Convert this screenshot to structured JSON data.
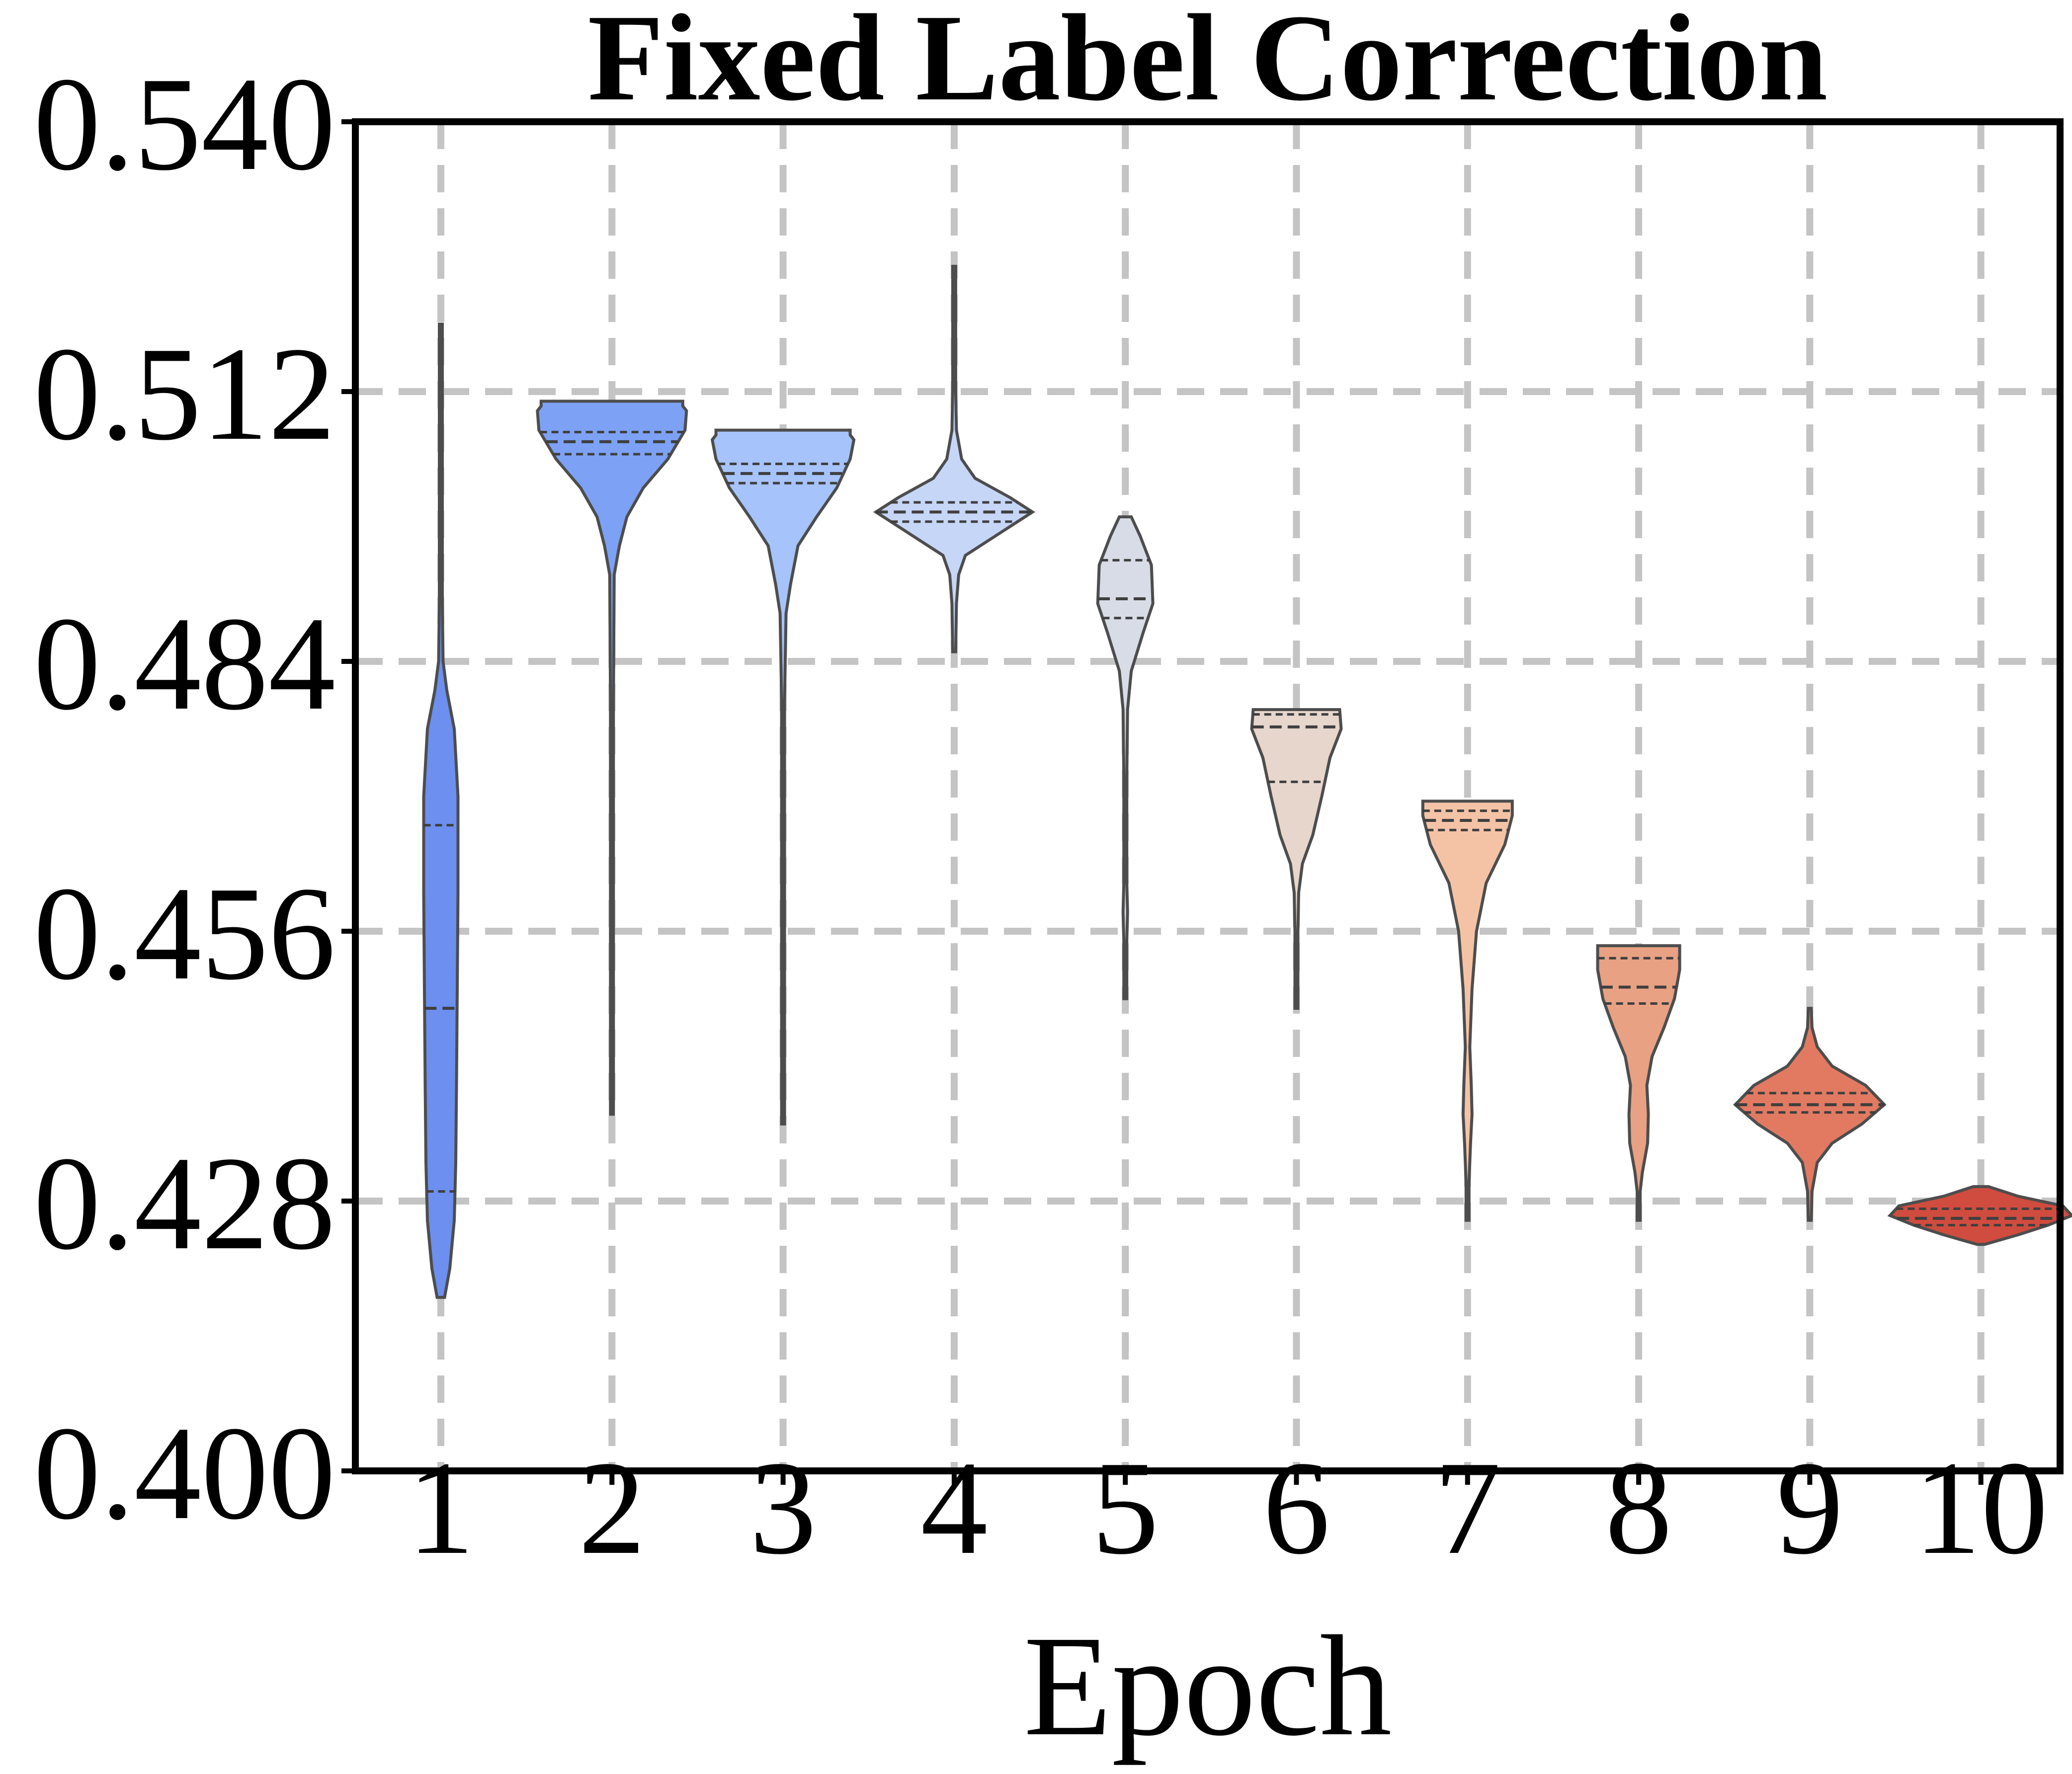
{
  "chart_data": {
    "type": "violin",
    "title": "Fixed Label Correction",
    "xlabel": "Epoch",
    "ylabel": "",
    "ylim": [
      0.4,
      0.54
    ],
    "yticks": [
      "0.400",
      "0.428",
      "0.456",
      "0.484",
      "0.512",
      "0.540"
    ],
    "categories": [
      "1",
      "2",
      "3",
      "4",
      "5",
      "6",
      "7",
      "8",
      "9",
      "10"
    ],
    "grid": true,
    "colors": [
      "#6c8ff0",
      "#7da2f5",
      "#a6c3fb",
      "#c6d6f7",
      "#d7dce6",
      "#e6d6cc",
      "#f4c3a6",
      "#e8a183",
      "#e27a62",
      "#d04c3e"
    ],
    "violins": [
      {
        "epoch": "1",
        "min": 0.418,
        "max": 0.519,
        "q1": 0.429,
        "median": 0.448,
        "q3": 0.467,
        "profile": [
          [
            0.418,
            0.05
          ],
          [
            0.421,
            0.12
          ],
          [
            0.426,
            0.18
          ],
          [
            0.432,
            0.2
          ],
          [
            0.44,
            0.21
          ],
          [
            0.45,
            0.22
          ],
          [
            0.46,
            0.23
          ],
          [
            0.47,
            0.23
          ],
          [
            0.477,
            0.18
          ],
          [
            0.481,
            0.08
          ],
          [
            0.484,
            0.03
          ],
          [
            0.49,
            0.01
          ],
          [
            0.5,
            0.01
          ],
          [
            0.519,
            0.004
          ]
        ]
      },
      {
        "epoch": "2",
        "min": 0.437,
        "max": 0.511,
        "q1": 0.5055,
        "median": 0.5068,
        "q3": 0.5078,
        "profile": [
          [
            0.437,
            0.004
          ],
          [
            0.46,
            0.006
          ],
          [
            0.48,
            0.006
          ],
          [
            0.493,
            0.03
          ],
          [
            0.496,
            0.1
          ],
          [
            0.499,
            0.2
          ],
          [
            0.502,
            0.42
          ],
          [
            0.505,
            0.75
          ],
          [
            0.508,
            0.98
          ],
          [
            0.51,
            1.0
          ],
          [
            0.5105,
            0.95
          ],
          [
            0.511,
            0.95
          ]
        ]
      },
      {
        "epoch": "3",
        "min": 0.436,
        "max": 0.508,
        "q1": 0.5025,
        "median": 0.5035,
        "q3": 0.5045,
        "profile": [
          [
            0.436,
            0.004
          ],
          [
            0.46,
            0.006
          ],
          [
            0.48,
            0.01
          ],
          [
            0.489,
            0.04
          ],
          [
            0.492,
            0.1
          ],
          [
            0.496,
            0.2
          ],
          [
            0.499,
            0.45
          ],
          [
            0.502,
            0.72
          ],
          [
            0.505,
            0.9
          ],
          [
            0.507,
            0.95
          ],
          [
            0.5075,
            0.9
          ],
          [
            0.508,
            0.9
          ]
        ]
      },
      {
        "epoch": "4",
        "min": 0.485,
        "max": 0.525,
        "q1": 0.4985,
        "median": 0.4995,
        "q3": 0.5005,
        "profile": [
          [
            0.485,
            0.01
          ],
          [
            0.49,
            0.03
          ],
          [
            0.493,
            0.06
          ],
          [
            0.495,
            0.15
          ],
          [
            0.497,
            0.55
          ],
          [
            0.4995,
            1.05
          ],
          [
            0.501,
            0.75
          ],
          [
            0.503,
            0.28
          ],
          [
            0.505,
            0.1
          ],
          [
            0.508,
            0.03
          ],
          [
            0.512,
            0.02
          ],
          [
            0.515,
            0.01
          ],
          [
            0.52,
            0.008
          ],
          [
            0.525,
            0.004
          ]
        ]
      },
      {
        "epoch": "5",
        "min": 0.449,
        "max": 0.499,
        "q1": 0.4885,
        "median": 0.4905,
        "q3": 0.4945,
        "profile": [
          [
            0.449,
            0.006
          ],
          [
            0.455,
            0.01
          ],
          [
            0.458,
            0.03
          ],
          [
            0.461,
            0.02
          ],
          [
            0.467,
            0.01
          ],
          [
            0.472,
            0.01
          ],
          [
            0.479,
            0.03
          ],
          [
            0.483,
            0.08
          ],
          [
            0.487,
            0.24
          ],
          [
            0.49,
            0.37
          ],
          [
            0.494,
            0.35
          ],
          [
            0.497,
            0.2
          ],
          [
            0.499,
            0.08
          ]
        ]
      },
      {
        "epoch": "6",
        "min": 0.448,
        "max": 0.479,
        "q1": 0.4715,
        "median": 0.4772,
        "q3": 0.4785,
        "profile": [
          [
            0.448,
            0.006
          ],
          [
            0.452,
            0.01
          ],
          [
            0.456,
            0.02
          ],
          [
            0.46,
            0.03
          ],
          [
            0.463,
            0.08
          ],
          [
            0.466,
            0.22
          ],
          [
            0.47,
            0.34
          ],
          [
            0.474,
            0.45
          ],
          [
            0.477,
            0.6
          ],
          [
            0.479,
            0.58
          ]
        ]
      },
      {
        "epoch": "7",
        "min": 0.426,
        "max": 0.4695,
        "q1": 0.4665,
        "median": 0.4675,
        "q3": 0.4685,
        "profile": [
          [
            0.426,
            0.006
          ],
          [
            0.43,
            0.02
          ],
          [
            0.434,
            0.04
          ],
          [
            0.437,
            0.06
          ],
          [
            0.44,
            0.05
          ],
          [
            0.444,
            0.03
          ],
          [
            0.45,
            0.06
          ],
          [
            0.456,
            0.12
          ],
          [
            0.461,
            0.25
          ],
          [
            0.465,
            0.5
          ],
          [
            0.468,
            0.6
          ],
          [
            0.4695,
            0.6
          ]
        ]
      },
      {
        "epoch": "8",
        "min": 0.426,
        "max": 0.4545,
        "q1": 0.4485,
        "median": 0.4502,
        "q3": 0.4532,
        "profile": [
          [
            0.426,
            0.006
          ],
          [
            0.429,
            0.02
          ],
          [
            0.431,
            0.05
          ],
          [
            0.434,
            0.12
          ],
          [
            0.437,
            0.13
          ],
          [
            0.44,
            0.11
          ],
          [
            0.443,
            0.18
          ],
          [
            0.446,
            0.34
          ],
          [
            0.449,
            0.48
          ],
          [
            0.452,
            0.55
          ],
          [
            0.4545,
            0.55
          ]
        ]
      },
      {
        "epoch": "9",
        "min": 0.426,
        "max": 0.448,
        "q1": 0.4372,
        "median": 0.438,
        "q3": 0.4392,
        "profile": [
          [
            0.426,
            0.01
          ],
          [
            0.429,
            0.03
          ],
          [
            0.432,
            0.1
          ],
          [
            0.434,
            0.3
          ],
          [
            0.436,
            0.7
          ],
          [
            0.438,
            1.0
          ],
          [
            0.44,
            0.75
          ],
          [
            0.442,
            0.3
          ],
          [
            0.444,
            0.1
          ],
          [
            0.446,
            0.03
          ],
          [
            0.448,
            0.01
          ]
        ]
      },
      {
        "epoch": "10",
        "min": 0.4235,
        "max": 0.4295,
        "q1": 0.4255,
        "median": 0.4262,
        "q3": 0.4272,
        "profile": [
          [
            0.4235,
            0.05
          ],
          [
            0.4245,
            0.5
          ],
          [
            0.4255,
            0.9
          ],
          [
            0.4265,
            1.22
          ],
          [
            0.4275,
            1.1
          ],
          [
            0.4285,
            0.5
          ],
          [
            0.4295,
            0.1
          ]
        ]
      }
    ]
  }
}
